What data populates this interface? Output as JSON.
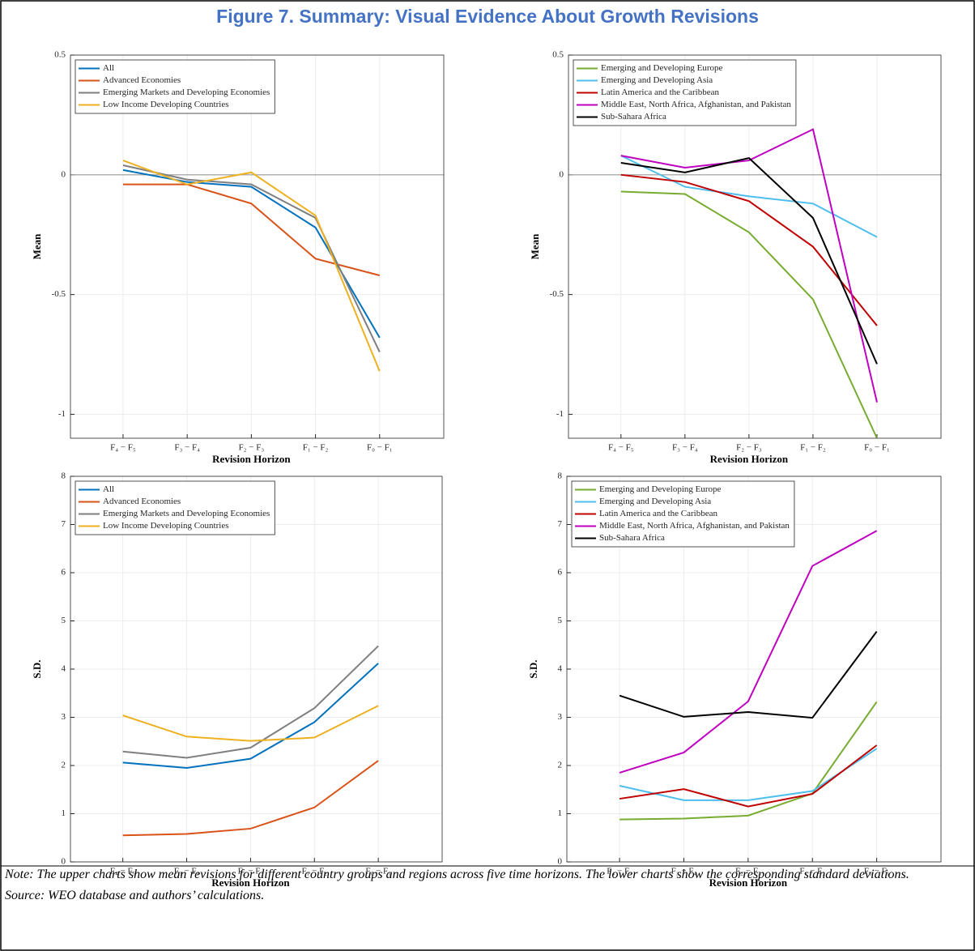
{
  "title": "Figure 7. Summary: Visual Evidence About Growth Revisions",
  "note": "Note: The upper charts show mean revisions for different country groups and regions across five time horizons. The lower charts show the corresponding standard deviations.",
  "source": "Source: WEO database and authors’ calculations.",
  "chart_data": [
    {
      "type": "line",
      "x_label": "Revision Horizon",
      "y_label": "Mean",
      "categories": [
        "F₄ − F₅",
        "F₃ − F₄",
        "F₂ − F₃",
        "F₁ − F₂",
        "F₀ − F₁"
      ],
      "ylim": [
        -1.1,
        0.5
      ],
      "yticks": [
        0.5,
        0,
        -0.5,
        -1
      ],
      "grid": true,
      "legend": "upper-left",
      "series": [
        {
          "name": "All",
          "color": "#0072bd",
          "values": [
            0.02,
            -0.03,
            -0.05,
            -0.22,
            -0.68
          ]
        },
        {
          "name": "Advanced Economies",
          "color": "#d95319",
          "values": [
            -0.04,
            -0.04,
            -0.12,
            -0.35,
            -0.42
          ]
        },
        {
          "name": "Emerging Markets and Developing Economies",
          "color": "#7f7f7f",
          "values": [
            0.04,
            -0.02,
            -0.04,
            -0.18,
            -0.74
          ]
        },
        {
          "name": "Low Income Developing Countries",
          "color": "#edb120",
          "values": [
            0.06,
            -0.04,
            0.01,
            -0.17,
            -0.82
          ]
        }
      ]
    },
    {
      "type": "line",
      "x_label": "Revision Horizon",
      "y_label": "Mean",
      "categories": [
        "F₄ − F₅",
        "F₃ − F₄",
        "F₂ − F₃",
        "F₁ − F₂",
        "F₀ − F₁"
      ],
      "ylim": [
        -1.1,
        0.5
      ],
      "yticks": [
        0.5,
        0,
        -0.5,
        -1
      ],
      "grid": true,
      "legend": "upper-left",
      "series": [
        {
          "name": "Emerging and Developing Europe",
          "color": "#77ac30",
          "values": [
            -0.07,
            -0.08,
            -0.24,
            -0.52,
            -1.1
          ]
        },
        {
          "name": "Emerging and Developing Asia",
          "color": "#4dbeee",
          "values": [
            0.08,
            -0.05,
            -0.09,
            -0.12,
            -0.26
          ]
        },
        {
          "name": "Latin America and the Caribbean",
          "color": "#c00000",
          "values": [
            0.0,
            -0.03,
            -0.11,
            -0.3,
            -0.63
          ]
        },
        {
          "name": "Middle East, North Africa, Afghanistan, and Pakistan",
          "color": "#c000c0",
          "values": [
            0.08,
            0.03,
            0.06,
            0.19,
            -0.95
          ]
        },
        {
          "name": "Sub-Sahara Africa",
          "color": "#000000",
          "values": [
            0.05,
            0.01,
            0.07,
            -0.18,
            -0.79
          ]
        }
      ]
    },
    {
      "type": "line",
      "x_label": "Revision Horizon",
      "y_label": "S.D.",
      "categories": [
        "F₄ − F₅",
        "F₃ − F₄",
        "F₂ − F₃",
        "F₁ − F₂",
        "F₀ − F₁"
      ],
      "ylim": [
        0,
        8
      ],
      "yticks": [
        0,
        1,
        2,
        3,
        4,
        5,
        6,
        7,
        8
      ],
      "grid": true,
      "legend": "upper-left",
      "series": [
        {
          "name": "All",
          "color": "#0072bd",
          "values": [
            2.06,
            1.95,
            2.14,
            2.9,
            4.12
          ]
        },
        {
          "name": "Advanced Economies",
          "color": "#d95319",
          "values": [
            0.55,
            0.58,
            0.69,
            1.13,
            2.1
          ]
        },
        {
          "name": "Emerging Markets and Developing Economies",
          "color": "#7f7f7f",
          "values": [
            2.29,
            2.16,
            2.37,
            3.19,
            4.48
          ]
        },
        {
          "name": "Low Income Developing Countries",
          "color": "#edb120",
          "values": [
            3.04,
            2.6,
            2.51,
            2.58,
            3.24
          ]
        }
      ]
    },
    {
      "type": "line",
      "x_label": "Revision Horizon",
      "y_label": "S.D.",
      "categories": [
        "F₄ − F₅",
        "F₃ − F₄",
        "F₂ − F₃",
        "F₁ − F₂",
        "F₀ − F₁"
      ],
      "ylim": [
        0,
        8
      ],
      "yticks": [
        0,
        1,
        2,
        3,
        4,
        5,
        6,
        7,
        8
      ],
      "grid": true,
      "legend": "upper-left",
      "series": [
        {
          "name": "Emerging and Developing Europe",
          "color": "#77ac30",
          "values": [
            0.88,
            0.9,
            0.96,
            1.42,
            3.32
          ]
        },
        {
          "name": "Emerging and Developing Asia",
          "color": "#4dbeee",
          "values": [
            1.58,
            1.28,
            1.28,
            1.47,
            2.35
          ]
        },
        {
          "name": "Latin America and the Caribbean",
          "color": "#c00000",
          "values": [
            1.31,
            1.51,
            1.15,
            1.41,
            2.42
          ]
        },
        {
          "name": "Middle East, North Africa, Afghanistan, and Pakistan",
          "color": "#c000c0",
          "values": [
            1.85,
            2.27,
            3.33,
            6.14,
            6.87
          ]
        },
        {
          "name": "Sub-Sahara Africa",
          "color": "#000000",
          "values": [
            3.45,
            3.01,
            3.11,
            2.99,
            4.78
          ]
        }
      ]
    }
  ]
}
